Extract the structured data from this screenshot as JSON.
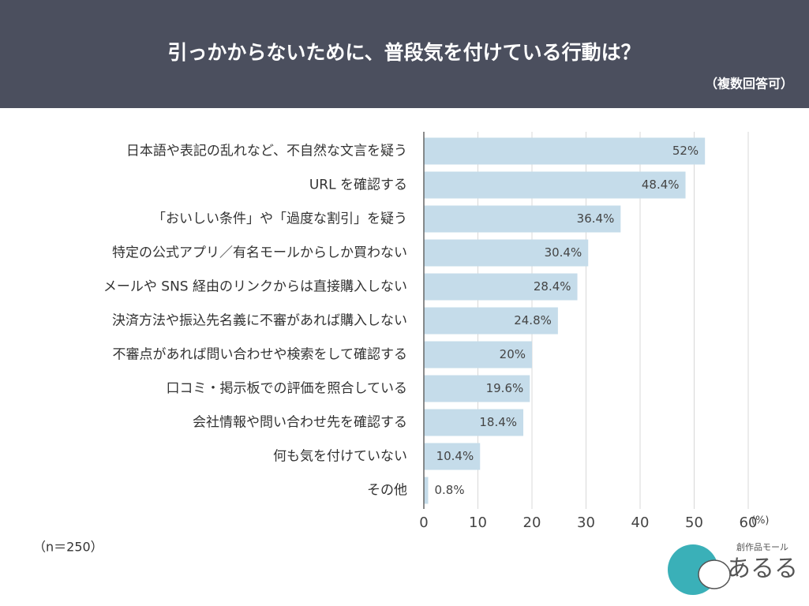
{
  "chart_data": {
    "type": "bar",
    "orientation": "horizontal",
    "title": "引っかからないために、普段気を付けている行動は？",
    "subtitle": "（複数回答可）",
    "note": "（n＝250）",
    "x_unit": "(%)",
    "categories": [
      "日本語や表記の乱れなど、不自然な文言を疑う",
      "URL を確認する",
      "「おいしい条件」や「過度な割引」を疑う",
      "特定の公式アプリ／有名モールからしか買わない",
      "メールや SNS 経由のリンクからは直接購入しない",
      "決済方法や振込先名義に不審があれば購入しない",
      "不審点があれば問い合わせや検索をして確認する",
      "口コミ・掲示板での評価を照合している",
      "会社情報や問い合わせ先を確認する",
      "何も気を付けていない",
      "その他"
    ],
    "values": [
      52,
      48.4,
      36.4,
      30.4,
      28.4,
      24.8,
      20,
      19.6,
      18.4,
      10.4,
      0.8
    ],
    "value_labels": [
      "52%",
      "48.4%",
      "36.4%",
      "30.4%",
      "28.4%",
      "24.8%",
      "20%",
      "19.6%",
      "18.4%",
      "10.4%",
      "0.8%"
    ],
    "color": "#c5dcea",
    "xlim": [
      0,
      60
    ],
    "xticks": [
      0,
      10,
      20,
      30,
      40,
      50,
      60
    ],
    "grid": true,
    "logo": {
      "tagline": "創作品モール",
      "name": "あるる"
    }
  }
}
